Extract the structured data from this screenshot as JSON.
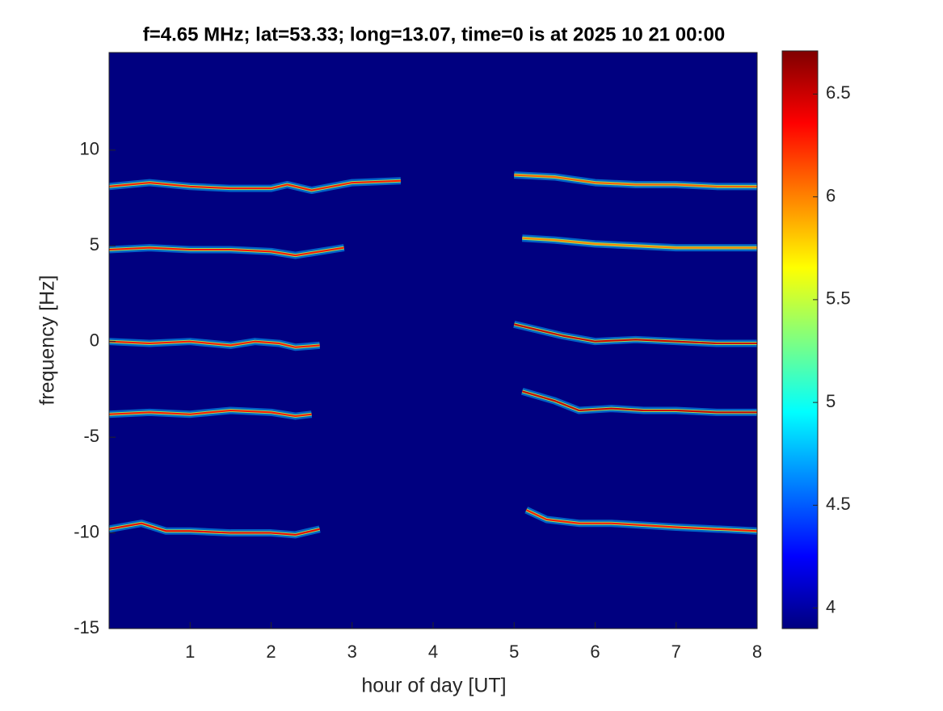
{
  "chart_data": {
    "type": "spectrogram",
    "title": "f=4.65 MHz;  lat=53.33; long=13.07, time=0 is at 2025 10 21 00:00",
    "x_label": "hour of day [UT]",
    "y_label": "frequency [Hz]",
    "xlim": [
      0,
      8
    ],
    "xticks": [
      1,
      2,
      3,
      4,
      5,
      6,
      7,
      8
    ],
    "ylim": [
      -15,
      15.1
    ],
    "yticks": [
      -15,
      -10,
      -5,
      0,
      5,
      10
    ],
    "clim": [
      3.9,
      6.71
    ],
    "cticks": [
      4,
      4.5,
      5,
      5.5,
      6,
      6.5
    ],
    "colormap": "jet",
    "traces": [
      {
        "x": [
          0,
          0.5,
          1,
          1.5,
          2,
          2.2,
          2.5,
          3,
          3.6
        ],
        "y": [
          8.1,
          8.3,
          8.1,
          8.0,
          8.0,
          8.2,
          7.9,
          8.3,
          8.4
        ],
        "level": 6.3
      },
      {
        "x": [
          5,
          5.5,
          6,
          6.5,
          7,
          7.5,
          8
        ],
        "y": [
          8.7,
          8.6,
          8.3,
          8.2,
          8.2,
          8.1,
          8.1
        ],
        "level": 6.1
      },
      {
        "x": [
          0,
          0.5,
          1,
          1.5,
          2,
          2.3,
          2.9
        ],
        "y": [
          4.8,
          4.9,
          4.8,
          4.8,
          4.7,
          4.5,
          4.9
        ],
        "level": 6.3
      },
      {
        "x": [
          5.1,
          5.5,
          6,
          6.5,
          7,
          7.5,
          8
        ],
        "y": [
          5.4,
          5.3,
          5.1,
          5.0,
          4.9,
          4.9,
          4.9
        ],
        "level": 6.0
      },
      {
        "x": [
          0,
          0.5,
          1,
          1.5,
          1.8,
          2.1,
          2.3,
          2.6
        ],
        "y": [
          0,
          -0.1,
          0,
          -0.2,
          0,
          -0.1,
          -0.3,
          -0.2
        ],
        "level": 6.3
      },
      {
        "x": [
          5,
          5.3,
          5.6,
          6,
          6.5,
          7,
          7.5,
          8
        ],
        "y": [
          0.9,
          0.6,
          0.3,
          0,
          0.1,
          0,
          -0.1,
          -0.1
        ],
        "level": 6.5
      },
      {
        "x": [
          0,
          0.5,
          1,
          1.5,
          2,
          2.3,
          2.5
        ],
        "y": [
          -3.8,
          -3.7,
          -3.8,
          -3.6,
          -3.7,
          -3.9,
          -3.8
        ],
        "level": 6.3
      },
      {
        "x": [
          5.1,
          5.5,
          5.8,
          6.2,
          6.6,
          7,
          7.5,
          8
        ],
        "y": [
          -2.6,
          -3.1,
          -3.6,
          -3.5,
          -3.6,
          -3.6,
          -3.7,
          -3.7
        ],
        "level": 6.5
      },
      {
        "x": [
          0,
          0.4,
          0.7,
          1,
          1.5,
          2,
          2.3,
          2.6
        ],
        "y": [
          -9.8,
          -9.5,
          -9.9,
          -9.9,
          -10,
          -10,
          -10.1,
          -9.8
        ],
        "level": 6.4
      },
      {
        "x": [
          5.15,
          5.4,
          5.8,
          6.2,
          6.6,
          7,
          7.5,
          8
        ],
        "y": [
          -8.8,
          -9.3,
          -9.5,
          -9.5,
          -9.6,
          -9.7,
          -9.8,
          -9.9
        ],
        "level": 6.3
      }
    ]
  }
}
